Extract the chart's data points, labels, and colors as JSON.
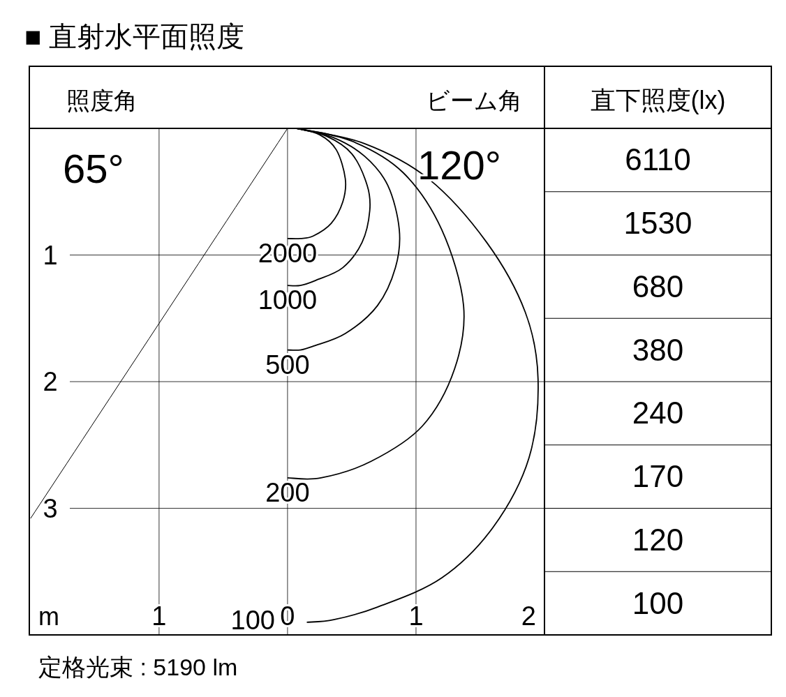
{
  "chart_data": [
    {
      "type": "line",
      "title": "■ 直射水平面照度",
      "xlabel": "m",
      "annotations": [
        "照度角",
        "ビーム角",
        "65°",
        "120°",
        "定格光束 : 5190 lm"
      ],
      "xlim": [
        -2.01,
        2.0
      ],
      "ylim": [
        4.0,
        0
      ],
      "xticks": [
        {
          "value": -1,
          "label": "1"
        },
        0,
        1,
        2
      ],
      "yticks": [
        1,
        2,
        3
      ],
      "grid": true,
      "marker": "none",
      "line_style": "solid",
      "series": [
        {
          "name": "2000",
          "color": "#000000",
          "x": [
            0.07,
            0.25,
            0.38,
            0.45,
            0.43,
            0.34,
            0.2,
            0.1,
            0
          ],
          "values": [
            0,
            0.05,
            0.17,
            0.4,
            0.58,
            0.75,
            0.85,
            0.87,
            0.87
          ]
        },
        {
          "name": "1000",
          "color": "#000000",
          "x": [
            0.07,
            0.3,
            0.5,
            0.62,
            0.64,
            0.58,
            0.43,
            0.22,
            0.1,
            0
          ],
          "values": [
            0,
            0.06,
            0.2,
            0.45,
            0.65,
            0.9,
            1.1,
            1.2,
            1.24,
            1.24
          ]
        },
        {
          "name": "500",
          "color": "#000000",
          "x": [
            0.07,
            0.35,
            0.6,
            0.78,
            0.87,
            0.84,
            0.7,
            0.45,
            0.2,
            0.1,
            0
          ],
          "values": [
            0,
            0.07,
            0.22,
            0.45,
            0.8,
            1.1,
            1.4,
            1.62,
            1.72,
            1.75,
            1.75
          ]
        },
        {
          "name": "200",
          "color": "#000000",
          "x": [
            0.07,
            0.5,
            0.9,
            1.2,
            1.37,
            1.3,
            1.05,
            0.65,
            0.26,
            0
          ],
          "values": [
            0,
            0.1,
            0.35,
            0.8,
            1.4,
            1.9,
            2.35,
            2.63,
            2.76,
            2.76
          ]
        },
        {
          "name": "100",
          "color": "#000000",
          "x": [
            0.07,
            0.6,
            1.1,
            1.55,
            1.85,
            1.95,
            1.88,
            1.6,
            1.2,
            0.7,
            0.36,
            0.15
          ],
          "values": [
            0,
            0.12,
            0.4,
            0.9,
            1.45,
            1.98,
            2.6,
            3.15,
            3.55,
            3.78,
            3.88,
            3.9
          ]
        },
        {
          "color": "#000000",
          "x": [
            0,
            -2.0
          ],
          "values": [
            0,
            3.08
          ]
        }
      ]
    },
    {
      "type": "other",
      "title": "直下照度(lx)",
      "annotations": [
        "6110",
        "1530",
        "680",
        "380",
        "240",
        "170",
        "120",
        "100"
      ]
    }
  ]
}
